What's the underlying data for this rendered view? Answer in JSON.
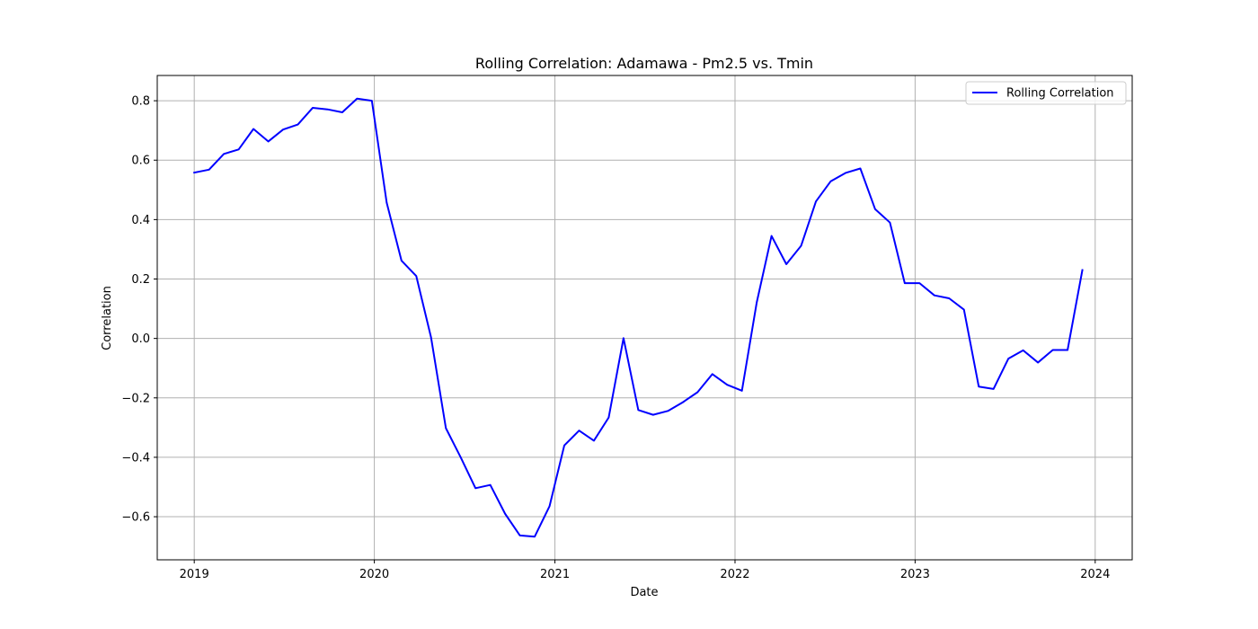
{
  "chart_data": {
    "type": "line",
    "title": "Rolling Correlation: Adamawa - Pm2.5 vs. Tmin",
    "xlabel": "Date",
    "ylabel": "Correlation",
    "x_axis_type": "date",
    "xlim": [
      "2018-10-18",
      "2024-03-16"
    ],
    "ylim": [
      -0.745,
      0.885
    ],
    "x_ticks": [
      "2019-01-01",
      "2020-01-01",
      "2021-01-01",
      "2022-01-01",
      "2023-01-01",
      "2024-01-01"
    ],
    "x_tick_labels": [
      "2019",
      "2020",
      "2021",
      "2022",
      "2023",
      "2024"
    ],
    "y_ticks": [
      -0.6,
      -0.4,
      -0.2,
      0.0,
      0.2,
      0.4,
      0.6,
      0.8
    ],
    "y_tick_labels": [
      "−0.6",
      "−0.4",
      "−0.2",
      "0.0",
      "0.2",
      "0.4",
      "0.6",
      "0.8"
    ],
    "grid": true,
    "legend_position": "top-right",
    "series": [
      {
        "name": "Rolling Correlation",
        "color": "#0000ff",
        "x": [
          "2019-01-01",
          "2019-01-31",
          "2019-03-02",
          "2019-04-01",
          "2019-05-01",
          "2019-05-31",
          "2019-06-30",
          "2019-07-30",
          "2019-08-29",
          "2019-09-28",
          "2019-10-28",
          "2019-11-27",
          "2019-12-27",
          "2020-01-26",
          "2020-02-25",
          "2020-03-26",
          "2020-04-25",
          "2020-05-25",
          "2020-06-24",
          "2020-07-24",
          "2020-08-23",
          "2020-09-22",
          "2020-10-22",
          "2020-11-21",
          "2020-12-21",
          "2021-01-20",
          "2021-02-19",
          "2021-03-21",
          "2021-04-20",
          "2021-05-20",
          "2021-06-19",
          "2021-07-19",
          "2021-08-18",
          "2021-09-17",
          "2021-10-17",
          "2021-11-16",
          "2021-12-16",
          "2022-01-15",
          "2022-02-14",
          "2022-03-16",
          "2022-04-15",
          "2022-05-15",
          "2022-06-14",
          "2022-07-14",
          "2022-08-13",
          "2022-09-12",
          "2022-10-12",
          "2022-11-11",
          "2022-12-11",
          "2023-01-10",
          "2023-02-09",
          "2023-03-11",
          "2023-04-10",
          "2023-05-10",
          "2023-06-09",
          "2023-07-09",
          "2023-08-08",
          "2023-09-07",
          "2023-10-07",
          "2023-11-06",
          "2023-12-06"
        ],
        "values": [
          0.558,
          0.568,
          0.621,
          0.636,
          0.705,
          0.663,
          0.703,
          0.72,
          0.776,
          0.771,
          0.761,
          0.807,
          0.8,
          0.457,
          0.262,
          0.21,
          0.003,
          -0.302,
          -0.4,
          -0.504,
          -0.493,
          -0.59,
          -0.663,
          -0.667,
          -0.565,
          -0.36,
          -0.31,
          -0.344,
          -0.266,
          0.001,
          -0.241,
          -0.257,
          -0.244,
          -0.215,
          -0.181,
          -0.12,
          -0.156,
          -0.176,
          0.121,
          0.345,
          0.25,
          0.312,
          0.461,
          0.529,
          0.557,
          0.572,
          0.435,
          0.39,
          0.186,
          0.186,
          0.145,
          0.135,
          0.097,
          -0.162,
          -0.17,
          -0.068,
          -0.04,
          -0.081,
          -0.039,
          -0.039,
          0.23
        ]
      }
    ]
  }
}
